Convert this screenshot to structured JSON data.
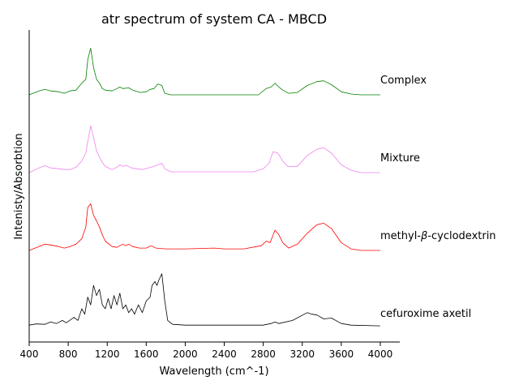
{
  "chart_data": {
    "type": "line",
    "title": "atr spectrum of system CA - MBCD",
    "xlabel": "Wavelength (cm^-1)",
    "ylabel": "Intenisty/Absorbtion",
    "xlim": [
      400,
      4200
    ],
    "xticks": [
      400,
      800,
      1200,
      1600,
      2000,
      2400,
      2800,
      3200,
      3600,
      4000
    ],
    "ylim": [
      0,
      4.1
    ],
    "grid": false,
    "series": [
      {
        "name": "cefuroxime axetil",
        "color": "#000000",
        "baseline": 0,
        "points": [
          [
            400,
            0.04
          ],
          [
            470,
            0.055
          ],
          [
            560,
            0.05
          ],
          [
            620,
            0.08
          ],
          [
            680,
            0.06
          ],
          [
            740,
            0.1
          ],
          [
            780,
            0.07
          ],
          [
            860,
            0.14
          ],
          [
            900,
            0.1
          ],
          [
            940,
            0.25
          ],
          [
            970,
            0.18
          ],
          [
            1000,
            0.4
          ],
          [
            1030,
            0.3
          ],
          [
            1060,
            0.55
          ],
          [
            1090,
            0.42
          ],
          [
            1120,
            0.5
          ],
          [
            1150,
            0.3
          ],
          [
            1180,
            0.25
          ],
          [
            1210,
            0.38
          ],
          [
            1240,
            0.25
          ],
          [
            1270,
            0.42
          ],
          [
            1300,
            0.3
          ],
          [
            1330,
            0.45
          ],
          [
            1360,
            0.25
          ],
          [
            1390,
            0.3
          ],
          [
            1420,
            0.2
          ],
          [
            1450,
            0.25
          ],
          [
            1480,
            0.18
          ],
          [
            1520,
            0.3
          ],
          [
            1560,
            0.2
          ],
          [
            1600,
            0.35
          ],
          [
            1640,
            0.4
          ],
          [
            1660,
            0.55
          ],
          [
            1690,
            0.6
          ],
          [
            1710,
            0.55
          ],
          [
            1730,
            0.62
          ],
          [
            1760,
            0.7
          ],
          [
            1790,
            0.35
          ],
          [
            1820,
            0.1
          ],
          [
            1870,
            0.05
          ],
          [
            2000,
            0.04
          ],
          [
            2400,
            0.04
          ],
          [
            2800,
            0.04
          ],
          [
            2880,
            0.06
          ],
          [
            2920,
            0.08
          ],
          [
            2960,
            0.06
          ],
          [
            3100,
            0.1
          ],
          [
            3250,
            0.2
          ],
          [
            3300,
            0.18
          ],
          [
            3350,
            0.17
          ],
          [
            3420,
            0.12
          ],
          [
            3500,
            0.13
          ],
          [
            3600,
            0.06
          ],
          [
            3700,
            0.04
          ],
          [
            4000,
            0.03
          ]
        ]
      },
      {
        "name": "methyl-β-cyclodextrin",
        "name_prefix": "methyl-",
        "name_symbol": "β",
        "name_suffix": "-cyclodextrin",
        "color": "#ff0000",
        "baseline": 1,
        "points": [
          [
            400,
            0.0
          ],
          [
            500,
            0.05
          ],
          [
            560,
            0.08
          ],
          [
            620,
            0.07
          ],
          [
            700,
            0.05
          ],
          [
            760,
            0.03
          ],
          [
            820,
            0.05
          ],
          [
            880,
            0.08
          ],
          [
            940,
            0.15
          ],
          [
            980,
            0.3
          ],
          [
            1000,
            0.55
          ],
          [
            1030,
            0.6
          ],
          [
            1060,
            0.45
          ],
          [
            1090,
            0.38
          ],
          [
            1120,
            0.3
          ],
          [
            1150,
            0.2
          ],
          [
            1180,
            0.12
          ],
          [
            1250,
            0.05
          ],
          [
            1300,
            0.04
          ],
          [
            1330,
            0.06
          ],
          [
            1360,
            0.08
          ],
          [
            1390,
            0.06
          ],
          [
            1420,
            0.08
          ],
          [
            1460,
            0.05
          ],
          [
            1530,
            0.03
          ],
          [
            1600,
            0.03
          ],
          [
            1650,
            0.06
          ],
          [
            1700,
            0.03
          ],
          [
            1800,
            0.02
          ],
          [
            2000,
            0.02
          ],
          [
            2300,
            0.03
          ],
          [
            2400,
            0.02
          ],
          [
            2600,
            0.02
          ],
          [
            2780,
            0.06
          ],
          [
            2830,
            0.12
          ],
          [
            2870,
            0.1
          ],
          [
            2920,
            0.26
          ],
          [
            2960,
            0.2
          ],
          [
            3000,
            0.1
          ],
          [
            3060,
            0.03
          ],
          [
            3150,
            0.08
          ],
          [
            3250,
            0.22
          ],
          [
            3350,
            0.33
          ],
          [
            3420,
            0.35
          ],
          [
            3500,
            0.28
          ],
          [
            3600,
            0.1
          ],
          [
            3700,
            0.02
          ],
          [
            3800,
            0.0
          ],
          [
            4000,
            0.0
          ]
        ]
      },
      {
        "name": "Mixture",
        "color": "#ee82ee",
        "baseline": 2,
        "points": [
          [
            400,
            0.0
          ],
          [
            500,
            0.06
          ],
          [
            560,
            0.09
          ],
          [
            620,
            0.06
          ],
          [
            700,
            0.05
          ],
          [
            760,
            0.04
          ],
          [
            820,
            0.04
          ],
          [
            880,
            0.07
          ],
          [
            940,
            0.15
          ],
          [
            980,
            0.25
          ],
          [
            1000,
            0.4
          ],
          [
            1030,
            0.6
          ],
          [
            1060,
            0.45
          ],
          [
            1090,
            0.28
          ],
          [
            1120,
            0.2
          ],
          [
            1150,
            0.13
          ],
          [
            1180,
            0.08
          ],
          [
            1250,
            0.04
          ],
          [
            1300,
            0.07
          ],
          [
            1330,
            0.1
          ],
          [
            1360,
            0.08
          ],
          [
            1400,
            0.09
          ],
          [
            1450,
            0.06
          ],
          [
            1500,
            0.05
          ],
          [
            1560,
            0.04
          ],
          [
            1620,
            0.06
          ],
          [
            1680,
            0.08
          ],
          [
            1720,
            0.1
          ],
          [
            1760,
            0.12
          ],
          [
            1790,
            0.05
          ],
          [
            1850,
            0.01
          ],
          [
            2000,
            0.01
          ],
          [
            2400,
            0.01
          ],
          [
            2700,
            0.01
          ],
          [
            2800,
            0.05
          ],
          [
            2860,
            0.12
          ],
          [
            2900,
            0.27
          ],
          [
            2950,
            0.25
          ],
          [
            3000,
            0.15
          ],
          [
            3050,
            0.08
          ],
          [
            3150,
            0.08
          ],
          [
            3250,
            0.22
          ],
          [
            3350,
            0.3
          ],
          [
            3420,
            0.32
          ],
          [
            3500,
            0.25
          ],
          [
            3600,
            0.1
          ],
          [
            3700,
            0.03
          ],
          [
            3800,
            0.0
          ],
          [
            4000,
            0.0
          ]
        ]
      },
      {
        "name": "Complex",
        "color": "#008000",
        "baseline": 3,
        "points": [
          [
            400,
            0.0
          ],
          [
            500,
            0.05
          ],
          [
            560,
            0.07
          ],
          [
            620,
            0.05
          ],
          [
            700,
            0.04
          ],
          [
            760,
            0.02
          ],
          [
            820,
            0.05
          ],
          [
            880,
            0.06
          ],
          [
            940,
            0.15
          ],
          [
            980,
            0.2
          ],
          [
            1000,
            0.45
          ],
          [
            1030,
            0.6
          ],
          [
            1060,
            0.35
          ],
          [
            1090,
            0.2
          ],
          [
            1120,
            0.15
          ],
          [
            1150,
            0.08
          ],
          [
            1180,
            0.06
          ],
          [
            1250,
            0.05
          ],
          [
            1300,
            0.08
          ],
          [
            1330,
            0.1
          ],
          [
            1360,
            0.08
          ],
          [
            1420,
            0.09
          ],
          [
            1460,
            0.06
          ],
          [
            1540,
            0.03
          ],
          [
            1600,
            0.04
          ],
          [
            1640,
            0.07
          ],
          [
            1680,
            0.08
          ],
          [
            1720,
            0.14
          ],
          [
            1760,
            0.12
          ],
          [
            1790,
            0.02
          ],
          [
            1850,
            0.0
          ],
          [
            2000,
            0.0
          ],
          [
            2400,
            0.0
          ],
          [
            2750,
            0.0
          ],
          [
            2830,
            0.08
          ],
          [
            2880,
            0.1
          ],
          [
            2920,
            0.15
          ],
          [
            2960,
            0.1
          ],
          [
            3000,
            0.06
          ],
          [
            3060,
            0.02
          ],
          [
            3150,
            0.03
          ],
          [
            3250,
            0.12
          ],
          [
            3350,
            0.17
          ],
          [
            3420,
            0.18
          ],
          [
            3500,
            0.13
          ],
          [
            3600,
            0.04
          ],
          [
            3700,
            0.01
          ],
          [
            3800,
            0.0
          ],
          [
            4000,
            0.0
          ]
        ]
      }
    ],
    "colors": {
      "axis": "#000000",
      "background": "#ffffff"
    }
  }
}
